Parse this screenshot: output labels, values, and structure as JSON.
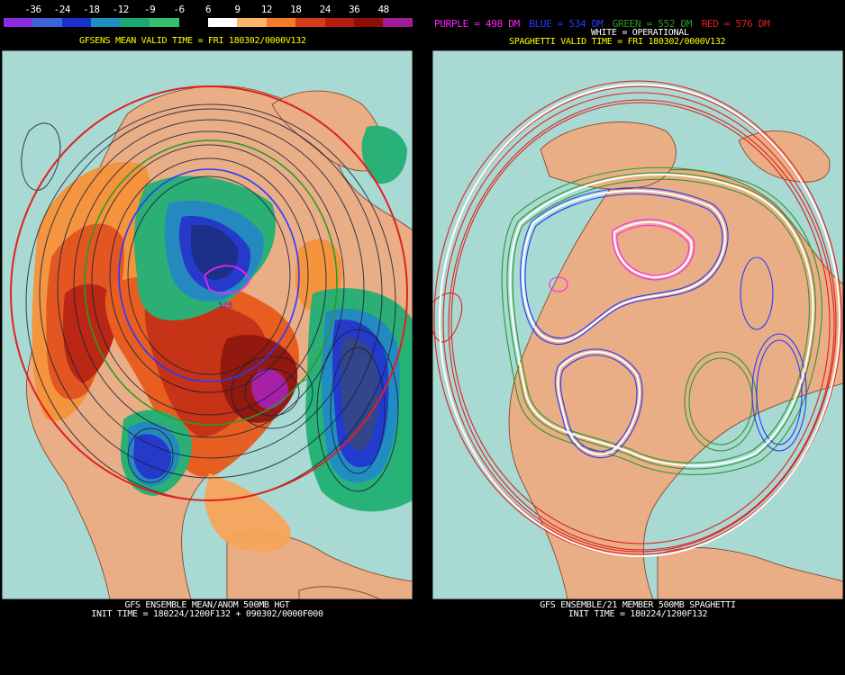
{
  "left_panel": {
    "colorbar_labels": [
      "-36",
      "-24",
      "-18",
      "-12",
      "-9",
      "-6",
      "6",
      "9",
      "12",
      "18",
      "24",
      "36",
      "48"
    ],
    "colorbar_colors": [
      "#8a2be2",
      "#3a64d8",
      "#1a2fd0",
      "#1f8fbf",
      "#1aa86f",
      "#34c06a",
      "#000000",
      "#ffffff",
      "#ffb36b",
      "#f47c28",
      "#d83a1a",
      "#b31e10",
      "#8e0f08",
      "#a01a99"
    ],
    "top_caption": "GFSENS MEAN VALID TIME = FRI 180302/0000V132",
    "bottom_caption_line1": "GFS ENSEMBLE MEAN/ANOM 500MB HGT",
    "bottom_caption_line2": "INIT TIME = 180224/1200F132 + 090302/0000F000",
    "contour_label": "528"
  },
  "right_panel": {
    "legend": {
      "purple": "PURPLE = 498 DM",
      "blue": "BLUE = 534 DM",
      "green": "GREEN = 552 DM",
      "red": "RED = 576 DM",
      "white": "WHITE = OPERATIONAL"
    },
    "legend_colors": {
      "purple": "#ff22ff",
      "blue": "#2a3aff",
      "green": "#2a9a2a",
      "red": "#e02020",
      "white": "#ffffff"
    },
    "top_caption": "SPAGHETTI VALID TIME = FRI 180302/0000V132",
    "bottom_caption_line1": "GFS ENSEMBLE/21 MEMBER 500MB SPAGHETTI",
    "bottom_caption_line2": "INIT TIME = 180224/1200F132"
  }
}
